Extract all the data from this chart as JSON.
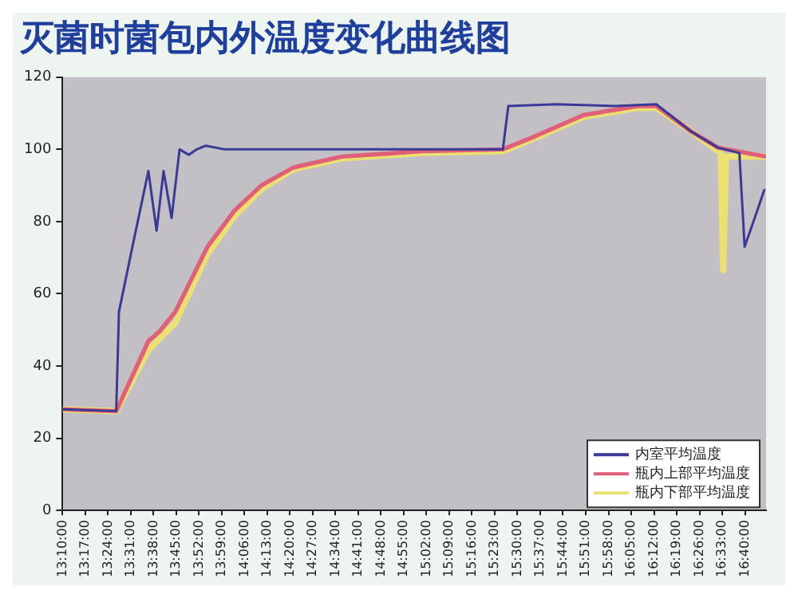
{
  "chart_data": {
    "type": "line",
    "title": "灭菌时菌包内外温度变化曲线图",
    "xlim": [
      13.1667,
      16.775
    ],
    "ylim": [
      0,
      120
    ],
    "yticks": [
      0,
      20,
      40,
      60,
      80,
      100,
      120
    ],
    "xticks": [
      {
        "value": 13.1667,
        "label": "13:10:00"
      },
      {
        "value": 13.2833,
        "label": "13:17:00"
      },
      {
        "value": 13.4,
        "label": "13:24:00"
      },
      {
        "value": 13.5167,
        "label": "13:31:00"
      },
      {
        "value": 13.6333,
        "label": "13:38:00"
      },
      {
        "value": 13.75,
        "label": "13:45:00"
      },
      {
        "value": 13.8667,
        "label": "13:52:00"
      },
      {
        "value": 13.9833,
        "label": "13:59:00"
      },
      {
        "value": 14.1,
        "label": "14:06:00"
      },
      {
        "value": 14.2167,
        "label": "14:13:00"
      },
      {
        "value": 14.3333,
        "label": "14:20:00"
      },
      {
        "value": 14.45,
        "label": "14:27:00"
      },
      {
        "value": 14.5667,
        "label": "14:34:00"
      },
      {
        "value": 14.6833,
        "label": "14:41:00"
      },
      {
        "value": 14.8,
        "label": "14:48:00"
      },
      {
        "value": 14.9167,
        "label": "14:55:00"
      },
      {
        "value": 15.0333,
        "label": "15:02:00"
      },
      {
        "value": 15.15,
        "label": "15:09:00"
      },
      {
        "value": 15.2667,
        "label": "15:16:00"
      },
      {
        "value": 15.3833,
        "label": "15:23:00"
      },
      {
        "value": 15.5,
        "label": "15:30:00"
      },
      {
        "value": 15.6167,
        "label": "15:37:00"
      },
      {
        "value": 15.7333,
        "label": "15:44:00"
      },
      {
        "value": 15.85,
        "label": "15:51:00"
      },
      {
        "value": 15.9667,
        "label": "15:58:00"
      },
      {
        "value": 16.0833,
        "label": "16:05:00"
      },
      {
        "value": 16.2,
        "label": "16:12:00"
      },
      {
        "value": 16.3167,
        "label": "16:19:00"
      },
      {
        "value": 16.4333,
        "label": "16:26:00"
      },
      {
        "value": 16.55,
        "label": "16:33:00"
      },
      {
        "value": 16.6667,
        "label": "16:40:00"
      }
    ],
    "grid": false,
    "legend": "bottom right",
    "marker": "none",
    "line_style": "solid",
    "series": [
      {
        "name": "内室平均温度",
        "color": "#3a3a96",
        "x": [
          13.167,
          13.442,
          13.456,
          13.525,
          13.607,
          13.649,
          13.685,
          13.726,
          13.767,
          13.814,
          13.855,
          13.9,
          14.0,
          14.3,
          14.7,
          15.1,
          15.425,
          15.453,
          15.7,
          16.0,
          16.212,
          16.39,
          16.528,
          16.638,
          16.665,
          16.72,
          16.767
        ],
        "values": [
          28,
          27.5,
          55,
          73,
          94,
          77.5,
          94,
          81,
          100,
          98.5,
          100,
          101,
          100,
          100,
          100,
          100,
          100,
          112,
          112.5,
          112,
          112.5,
          105,
          100.5,
          99,
          73,
          81.5,
          89
        ]
      },
      {
        "name": "瓶内上部平均温度",
        "color": "#e0607a",
        "x": [
          13.167,
          13.442,
          13.608,
          13.663,
          13.745,
          13.91,
          14.048,
          14.186,
          14.351,
          14.6,
          15.013,
          15.425,
          15.563,
          15.839,
          16.115,
          16.212,
          16.39,
          16.528,
          16.775
        ],
        "values": [
          28,
          27.5,
          47,
          49.5,
          55,
          73,
          83,
          90,
          95,
          98,
          99.5,
          100,
          103,
          109.5,
          112,
          112,
          105,
          100.5,
          98
        ]
      },
      {
        "name": "瓶内下部平均温度",
        "color": "#ece070",
        "x": [
          13.167,
          13.442,
          13.608,
          13.745,
          13.91,
          14.048,
          14.186,
          14.351,
          14.6,
          15.013,
          15.425,
          15.563,
          15.839,
          16.115,
          16.212,
          16.39,
          16.542,
          16.555,
          16.57,
          16.775
        ],
        "values": [
          28,
          27.5,
          44.5,
          52,
          71,
          81.5,
          89,
          94.5,
          97.5,
          99,
          99.5,
          102.5,
          109,
          111.5,
          111.5,
          105,
          99,
          66.5,
          98,
          98
        ]
      }
    ]
  }
}
